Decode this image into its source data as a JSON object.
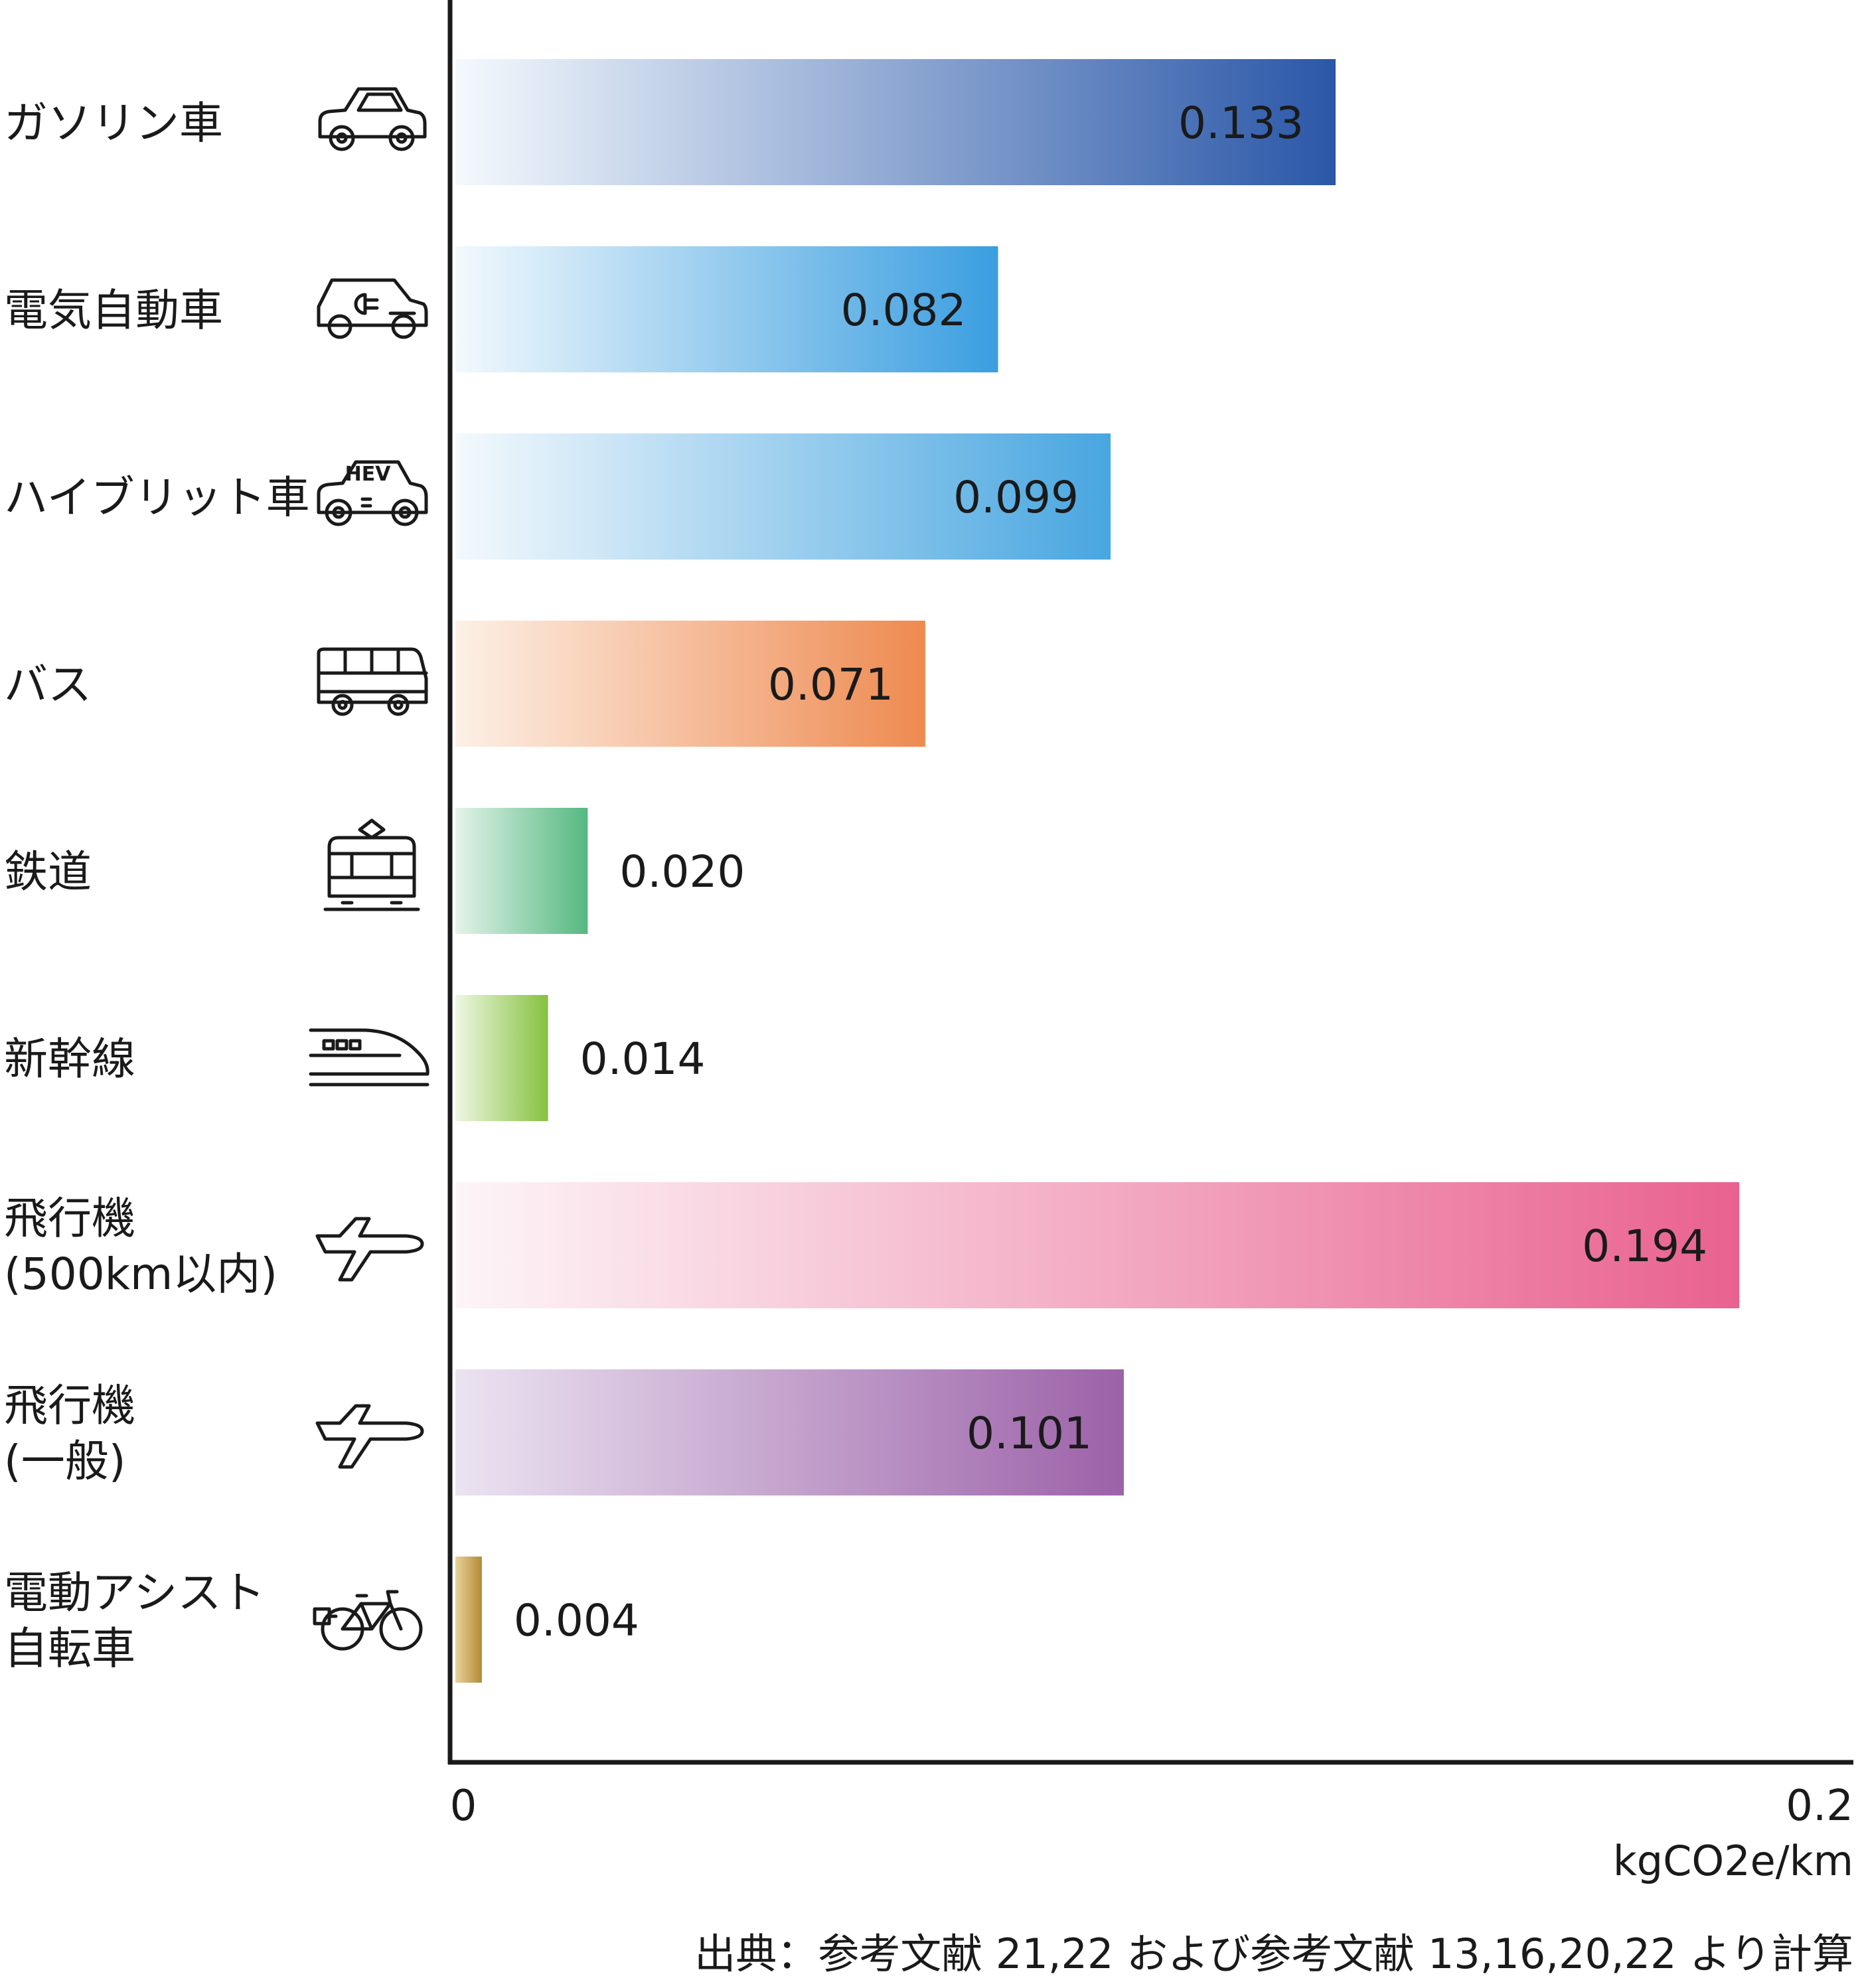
{
  "chart_data": {
    "type": "bar",
    "orientation": "horizontal",
    "categories": [
      [
        "ガソリン車"
      ],
      [
        "電気自動車"
      ],
      [
        "ハイブリット車"
      ],
      [
        "バス"
      ],
      [
        "鉄道"
      ],
      [
        "新幹線"
      ],
      [
        "飛行機",
        "(500km以内)"
      ],
      [
        "飛行機",
        "(一般)"
      ],
      [
        "電動アシスト",
        "自転車"
      ]
    ],
    "values": [
      0.133,
      0.082,
      0.099,
      0.071,
      0.02,
      0.014,
      0.194,
      0.101,
      0.004
    ],
    "value_labels": [
      "0.133",
      "0.082",
      "0.099",
      "0.071",
      "0.020",
      "0.014",
      "0.194",
      "0.101",
      "0.004"
    ],
    "icons": [
      "car-icon",
      "electric-car-icon",
      "hybrid-car-icon",
      "bus-icon",
      "tram-icon",
      "shinkansen-icon",
      "airplane-icon",
      "airplane-icon",
      "e-bike-icon"
    ],
    "icon_text": {
      "hybrid": "HEV"
    },
    "colors": [
      [
        "#f4f9fd",
        "#2a57a8"
      ],
      [
        "#f2f9fd",
        "#3a9ee0"
      ],
      [
        "#f4f9fd",
        "#48a6e0"
      ],
      [
        "#fdf0e6",
        "#ee8a50"
      ],
      [
        "#e4f3ea",
        "#55b880"
      ],
      [
        "#eef7e2",
        "#86c140"
      ],
      [
        "#fdf5f8",
        "#e9628f"
      ],
      [
        "#ebe3f1",
        "#9c62a8"
      ],
      [
        "#e9d29a",
        "#b38a36"
      ]
    ],
    "xlim": [
      0,
      0.2
    ],
    "xticks": [
      "0",
      "0.2"
    ],
    "unit": "kgCO2e/km",
    "source": "出典：参考文献 21,22 および参考文献 13,16,20,22 より計算",
    "grid": false,
    "legend": "none"
  }
}
